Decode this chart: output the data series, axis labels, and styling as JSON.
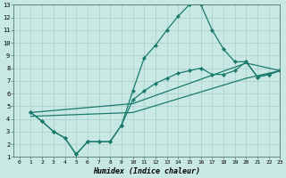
{
  "bg_color": "#c8e8e4",
  "grid_color": "#a8ceca",
  "line_color": "#1a7a6e",
  "xlabel": "Humidex (Indice chaleur)",
  "xlim": [
    -0.5,
    23
  ],
  "ylim": [
    1,
    13
  ],
  "xticks": [
    0,
    1,
    2,
    3,
    4,
    5,
    6,
    7,
    8,
    9,
    10,
    11,
    12,
    13,
    14,
    15,
    16,
    17,
    18,
    19,
    20,
    21,
    22,
    23
  ],
  "yticks": [
    1,
    2,
    3,
    4,
    5,
    6,
    7,
    8,
    9,
    10,
    11,
    12,
    13
  ],
  "line1_x": [
    1,
    2,
    3,
    4,
    5,
    6,
    7,
    8,
    9,
    10,
    11,
    12,
    13,
    14,
    15,
    16,
    17,
    18,
    19,
    20,
    21,
    22,
    23
  ],
  "line1_y": [
    4.5,
    3.8,
    3.0,
    2.5,
    1.2,
    2.2,
    2.2,
    2.2,
    3.5,
    6.2,
    8.8,
    9.8,
    11.0,
    12.1,
    13.0,
    13.0,
    11.0,
    9.5,
    8.5,
    8.5,
    7.3,
    7.5,
    7.8
  ],
  "line2_x": [
    1,
    2,
    3,
    4,
    5,
    6,
    7,
    8,
    9,
    10,
    11,
    12,
    13,
    14,
    15,
    16,
    17,
    18,
    19,
    20,
    21,
    22,
    23
  ],
  "line2_y": [
    4.5,
    3.8,
    3.0,
    2.5,
    1.2,
    2.2,
    2.2,
    2.2,
    3.5,
    5.5,
    6.2,
    6.8,
    7.2,
    7.6,
    7.8,
    8.0,
    7.5,
    7.5,
    7.8,
    8.5,
    7.3,
    7.5,
    7.8
  ],
  "line3_x": [
    1,
    10,
    20,
    23
  ],
  "line3_y": [
    4.5,
    5.2,
    8.4,
    7.8
  ],
  "line4_x": [
    1,
    10,
    20,
    23
  ],
  "line4_y": [
    4.2,
    4.5,
    7.2,
    7.8
  ]
}
